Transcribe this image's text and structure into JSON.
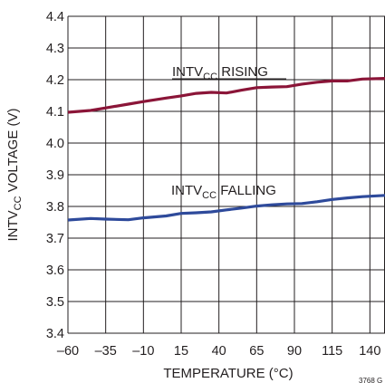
{
  "chart_data": {
    "type": "line",
    "xlabel": "TEMPERATURE (°C)",
    "ylabel": {
      "prefix": "INTV",
      "sub": "CC",
      "suffix": " VOLTAGE (V)"
    },
    "xlim": [
      -60,
      150
    ],
    "ylim": [
      3.4,
      4.4
    ],
    "x_ticks": [
      -60,
      -35,
      -10,
      15,
      40,
      65,
      90,
      115,
      140
    ],
    "x_tick_labels": [
      "–60",
      "–35",
      "–10",
      "15",
      "40",
      "65",
      "90",
      "115",
      "140"
    ],
    "y_ticks": [
      3.4,
      3.5,
      3.6,
      3.7,
      3.8,
      3.9,
      4.0,
      4.1,
      4.2,
      4.3,
      4.4
    ],
    "y_tick_labels": [
      "3.4",
      "3.5",
      "3.6",
      "3.7",
      "3.8",
      "3.9",
      "4.0",
      "4.1",
      "4.2",
      "4.3",
      "4.4"
    ],
    "grid": true,
    "series": [
      {
        "name": {
          "prefix": "INTV",
          "sub": "CC",
          "suffix": " RISING"
        },
        "color": "#8b1538",
        "x": [
          -60,
          -45,
          -35,
          -20,
          -10,
          5,
          15,
          25,
          35,
          45,
          55,
          65,
          75,
          85,
          95,
          105,
          115,
          125,
          135,
          150
        ],
        "y": [
          4.097,
          4.103,
          4.111,
          4.123,
          4.131,
          4.142,
          4.149,
          4.157,
          4.16,
          4.158,
          4.167,
          4.175,
          4.177,
          4.178,
          4.186,
          4.192,
          4.196,
          4.196,
          4.202,
          4.204
        ]
      },
      {
        "name": {
          "prefix": "INTV",
          "sub": "CC",
          "suffix": " FALLING"
        },
        "color": "#2e4a9b",
        "x": [
          -60,
          -45,
          -35,
          -20,
          -10,
          5,
          15,
          25,
          35,
          45,
          55,
          65,
          75,
          85,
          95,
          105,
          115,
          125,
          135,
          150
        ],
        "y": [
          3.757,
          3.762,
          3.76,
          3.758,
          3.764,
          3.77,
          3.778,
          3.78,
          3.783,
          3.789,
          3.795,
          3.801,
          3.805,
          3.808,
          3.809,
          3.815,
          3.822,
          3.827,
          3.831,
          3.835
        ]
      }
    ],
    "figure_id": "3768 G"
  }
}
